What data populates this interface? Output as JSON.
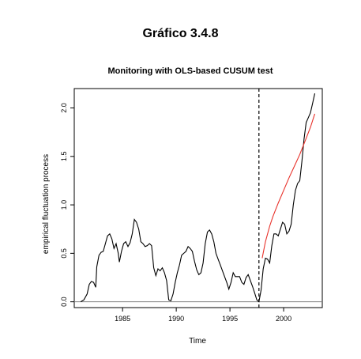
{
  "figure_title": "Gráfico 3.4.8",
  "chart_data": {
    "type": "line",
    "title": "Monitoring with OLS-based CUSUM test",
    "xlabel": "Time",
    "ylabel": "empirical fluctuation process",
    "xlim": [
      1980.5,
      2003.6
    ],
    "ylim": [
      -0.06,
      2.2
    ],
    "x_ticks": [
      1985,
      1990,
      1995,
      2000
    ],
    "y_ticks": [
      0.0,
      0.5,
      1.0,
      1.5,
      2.0
    ],
    "x_tick_labels": [
      "1985",
      "1990",
      "1995",
      "2000"
    ],
    "y_tick_labels": [
      "0.0",
      "0.5",
      "1.0",
      "1.5",
      "2.0"
    ],
    "grid": false,
    "baseline_y": 0.0,
    "monitoring_start": 1997.7,
    "colors": {
      "process": "#000000",
      "boundary": "#e8312a",
      "baseline": "#808080"
    },
    "series": [
      {
        "values": [
          [
            1981.1,
            0.0
          ],
          [
            1981.4,
            0.02
          ],
          [
            1981.7,
            0.08
          ],
          [
            1981.9,
            0.18
          ],
          [
            1982.1,
            0.21
          ],
          [
            1982.3,
            0.2
          ],
          [
            1982.5,
            0.15
          ],
          [
            1982.6,
            0.36
          ],
          [
            1982.8,
            0.48
          ],
          [
            1983.0,
            0.51
          ],
          [
            1983.2,
            0.52
          ],
          [
            1983.4,
            0.6
          ],
          [
            1983.6,
            0.68
          ],
          [
            1983.8,
            0.7
          ],
          [
            1984.0,
            0.65
          ],
          [
            1984.2,
            0.55
          ],
          [
            1984.4,
            0.6
          ],
          [
            1984.6,
            0.5
          ],
          [
            1984.7,
            0.41
          ],
          [
            1984.9,
            0.52
          ],
          [
            1985.1,
            0.6
          ],
          [
            1985.3,
            0.62
          ],
          [
            1985.5,
            0.57
          ],
          [
            1985.7,
            0.61
          ],
          [
            1985.9,
            0.7
          ],
          [
            1986.1,
            0.85
          ],
          [
            1986.3,
            0.82
          ],
          [
            1986.5,
            0.75
          ],
          [
            1986.7,
            0.62
          ],
          [
            1986.9,
            0.6
          ],
          [
            1987.1,
            0.57
          ],
          [
            1987.3,
            0.58
          ],
          [
            1987.5,
            0.6
          ],
          [
            1987.7,
            0.58
          ],
          [
            1987.9,
            0.35
          ],
          [
            1988.1,
            0.27
          ],
          [
            1988.3,
            0.34
          ],
          [
            1988.5,
            0.32
          ],
          [
            1988.7,
            0.35
          ],
          [
            1988.9,
            0.3
          ],
          [
            1989.1,
            0.22
          ],
          [
            1989.3,
            0.02
          ],
          [
            1989.5,
            0.01
          ],
          [
            1989.7,
            0.08
          ],
          [
            1989.9,
            0.2
          ],
          [
            1990.1,
            0.3
          ],
          [
            1990.3,
            0.38
          ],
          [
            1990.5,
            0.48
          ],
          [
            1990.7,
            0.5
          ],
          [
            1990.9,
            0.52
          ],
          [
            1991.1,
            0.57
          ],
          [
            1991.3,
            0.55
          ],
          [
            1991.5,
            0.52
          ],
          [
            1991.7,
            0.42
          ],
          [
            1991.9,
            0.33
          ],
          [
            1992.1,
            0.28
          ],
          [
            1992.3,
            0.3
          ],
          [
            1992.5,
            0.4
          ],
          [
            1992.7,
            0.6
          ],
          [
            1992.9,
            0.72
          ],
          [
            1993.1,
            0.74
          ],
          [
            1993.3,
            0.7
          ],
          [
            1993.5,
            0.62
          ],
          [
            1993.7,
            0.5
          ],
          [
            1993.9,
            0.44
          ],
          [
            1994.1,
            0.38
          ],
          [
            1994.3,
            0.32
          ],
          [
            1994.5,
            0.26
          ],
          [
            1994.7,
            0.2
          ],
          [
            1994.9,
            0.13
          ],
          [
            1995.1,
            0.2
          ],
          [
            1995.3,
            0.3
          ],
          [
            1995.5,
            0.26
          ],
          [
            1995.7,
            0.26
          ],
          [
            1995.9,
            0.26
          ],
          [
            1996.1,
            0.2
          ],
          [
            1996.3,
            0.18
          ],
          [
            1996.5,
            0.25
          ],
          [
            1996.7,
            0.28
          ],
          [
            1996.9,
            0.22
          ],
          [
            1997.1,
            0.16
          ],
          [
            1997.3,
            0.09
          ],
          [
            1997.5,
            0.02
          ],
          [
            1997.7,
            0.0
          ],
          [
            1997.9,
            0.12
          ],
          [
            1998.1,
            0.34
          ],
          [
            1998.3,
            0.45
          ],
          [
            1998.5,
            0.44
          ],
          [
            1998.7,
            0.4
          ],
          [
            1998.9,
            0.58
          ],
          [
            1999.1,
            0.7
          ],
          [
            1999.3,
            0.7
          ],
          [
            1999.5,
            0.68
          ],
          [
            1999.7,
            0.75
          ],
          [
            1999.9,
            0.82
          ],
          [
            2000.1,
            0.8
          ],
          [
            2000.3,
            0.7
          ],
          [
            2000.5,
            0.73
          ],
          [
            2000.7,
            0.8
          ],
          [
            2000.9,
            1.0
          ],
          [
            2001.1,
            1.15
          ],
          [
            2001.3,
            1.22
          ],
          [
            2001.5,
            1.25
          ],
          [
            2001.7,
            1.45
          ],
          [
            2001.9,
            1.68
          ],
          [
            2002.1,
            1.85
          ],
          [
            2002.3,
            1.9
          ],
          [
            2002.5,
            1.95
          ],
          [
            2002.7,
            2.05
          ],
          [
            2002.9,
            2.15
          ]
        ]
      },
      {
        "values": [
          [
            1998.0,
            0.45
          ],
          [
            1998.3,
            0.62
          ],
          [
            1998.7,
            0.78
          ],
          [
            1999.0,
            0.88
          ],
          [
            1999.5,
            1.02
          ],
          [
            2000.0,
            1.15
          ],
          [
            2000.5,
            1.28
          ],
          [
            2001.0,
            1.4
          ],
          [
            2001.5,
            1.52
          ],
          [
            2002.0,
            1.66
          ],
          [
            2002.5,
            1.8
          ],
          [
            2002.9,
            1.94
          ]
        ]
      }
    ]
  }
}
